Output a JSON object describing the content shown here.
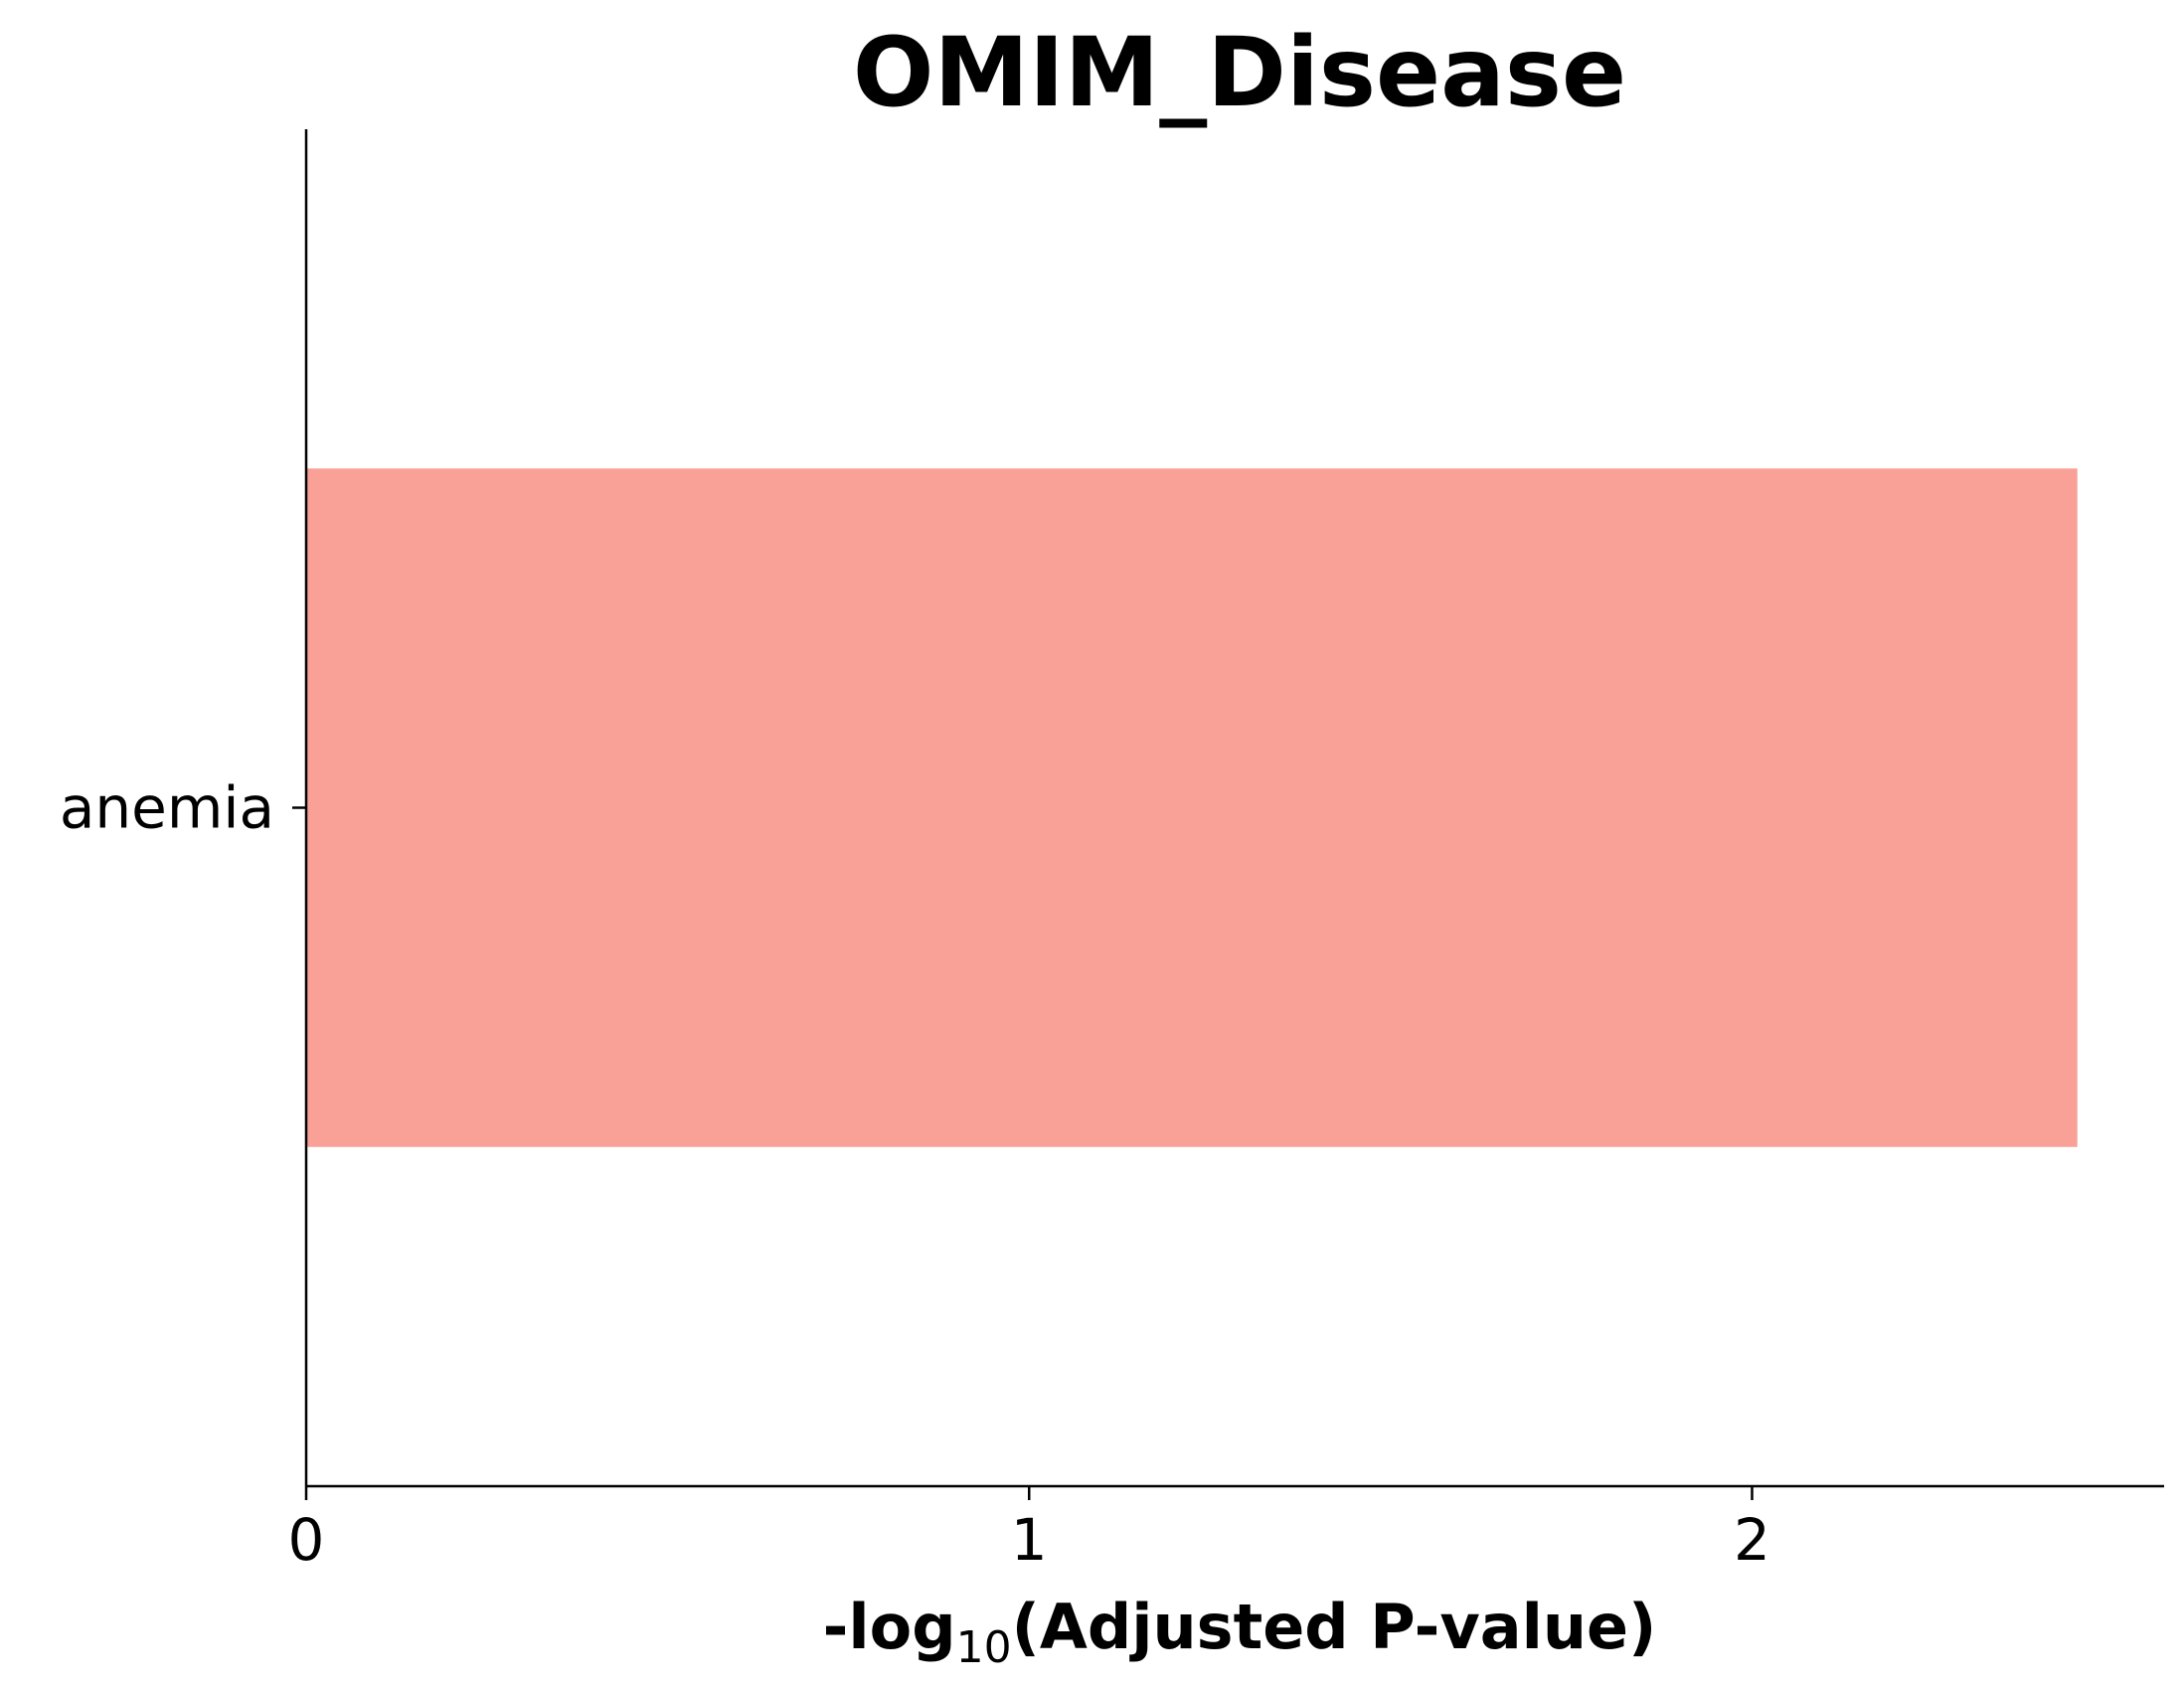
{
  "chart_data": {
    "type": "bar",
    "orientation": "horizontal",
    "title": "OMIM_Disease",
    "categories": [
      "anemia"
    ],
    "values": [
      2.45
    ],
    "xlabel": {
      "prefix": "-log",
      "subscript": "10",
      "suffix": "(Adjusted P-value)"
    },
    "xlim": [
      0,
      2.57
    ],
    "xticks": [
      "0",
      "1",
      "2"
    ],
    "xtick_values": [
      0,
      1,
      2
    ],
    "bar_color": "#f9a197",
    "grid": false,
    "legend": "none"
  }
}
